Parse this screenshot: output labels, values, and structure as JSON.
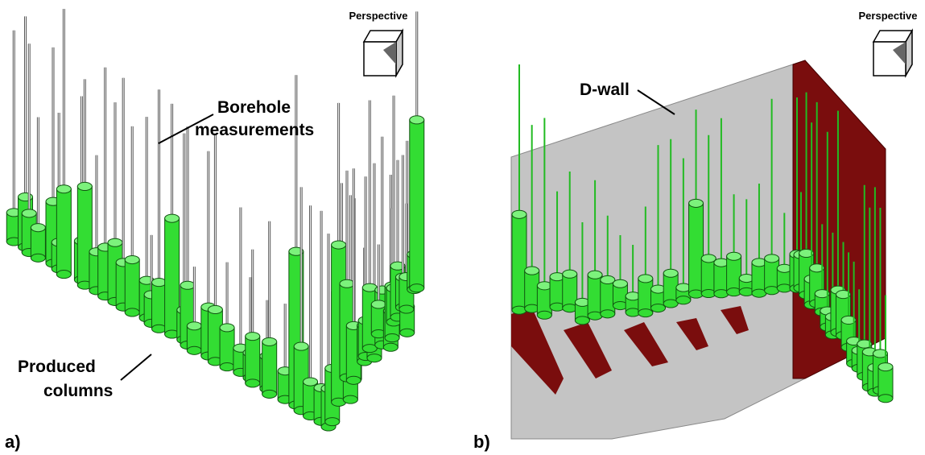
{
  "panels": [
    {
      "label": "a)",
      "view_cube": "Perspective",
      "annotations": [
        {
          "lines": [
            "Borehole",
            "measurements"
          ]
        },
        {
          "lines": [
            "Produced",
            "columns"
          ]
        }
      ]
    },
    {
      "label": "b)",
      "view_cube": "Perspective",
      "annotations": [
        {
          "lines": [
            "D-wall"
          ]
        }
      ]
    }
  ]
}
